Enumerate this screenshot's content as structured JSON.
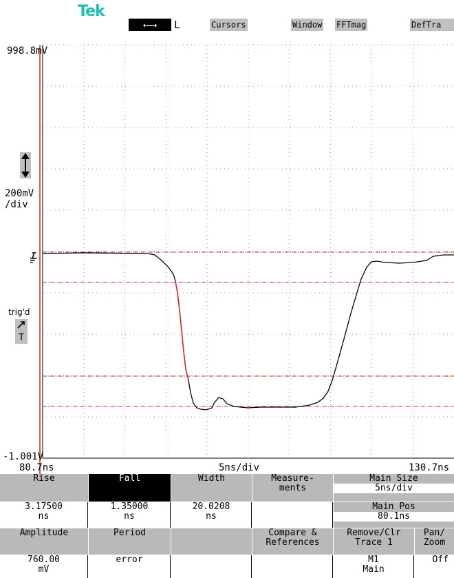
{
  "header": {
    "logo": "Tek",
    "mode_symbol": "⟵⟶",
    "mode_label": "L",
    "menu": [
      "Cursors",
      "Window",
      "FFTmag",
      "DefTra"
    ]
  },
  "display": {
    "top_value": "998.8mV",
    "scale": "200mV",
    "scale_unit": "/div",
    "trig_label": "trig'd",
    "trig_letter": "T",
    "bottom_value": "-1.001V",
    "x_start": "80.7ns",
    "x_scale": "5ns/div",
    "x_end": "130.7ns"
  },
  "panel": {
    "rise": {
      "label": "Rise",
      "value": "3.17500",
      "unit": "ns"
    },
    "fall": {
      "label": "Fall",
      "value": "1.35000",
      "unit": "ns"
    },
    "width": {
      "label": "Width",
      "value": "20.0208",
      "unit": "ns"
    },
    "measurements": {
      "line1": "Measure-",
      "line2": "ments"
    },
    "main_size": {
      "label": "Main Size",
      "value": "5ns/div"
    },
    "main_pos": {
      "label": "Main Pos",
      "value": "80.1ns"
    },
    "amplitude": {
      "label": "Amplitude",
      "value": "760.00",
      "unit": "mV"
    },
    "period": {
      "label": "Period",
      "value": "error"
    },
    "compare": {
      "line1": "Compare &",
      "line2": "References"
    },
    "remove": {
      "line1": "Remove/Clr",
      "line2": "Trace 1",
      "value1": "M1",
      "value2": "Main"
    },
    "panzoom": {
      "line1": "Pan/",
      "line2": "Zoom",
      "value": "Off"
    }
  },
  "colors": {
    "accent_logo": "#1fbfb0",
    "cursor_red": "#e0201a",
    "grid_dot": "#9a9a9a",
    "button_gray": "#b9b9b9"
  }
}
